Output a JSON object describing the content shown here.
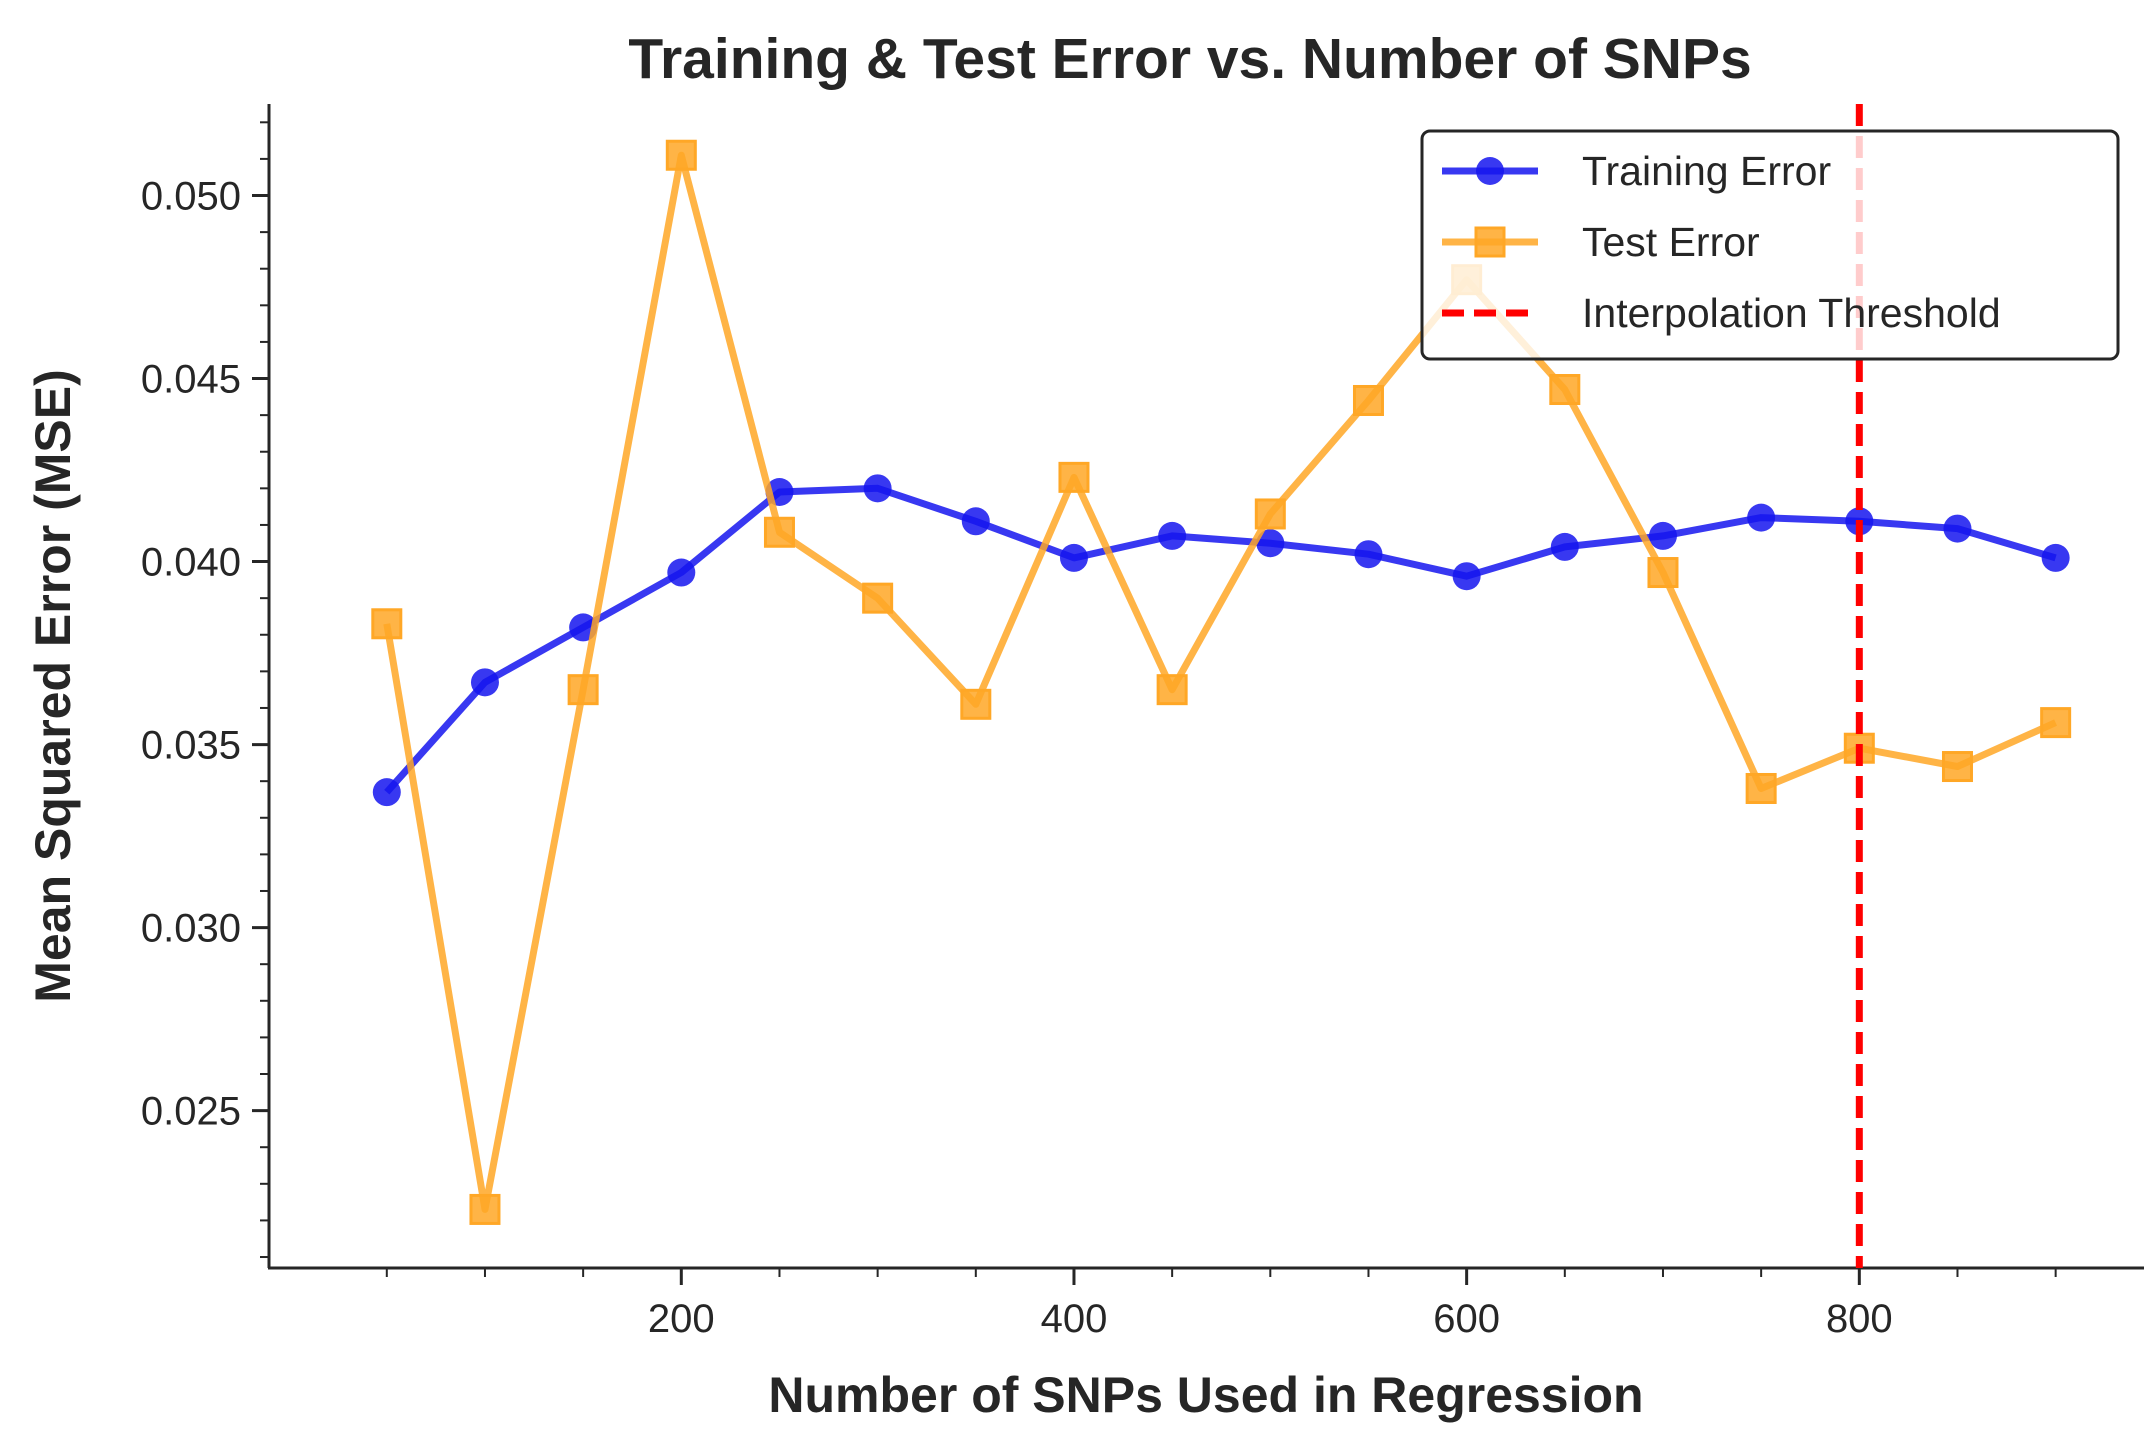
{
  "chart_data": {
    "type": "line",
    "title": "Training & Test Error vs. Number of SNPs",
    "xlabel": "Number of SNPs Used in Regression",
    "ylabel": "Mean Squared Error (MSE)",
    "xlim": [
      -10,
      945
    ],
    "ylim": [
      0.0207,
      0.0525
    ],
    "x_ticks": [
      200,
      400,
      600,
      800
    ],
    "x_ticks_minor": [
      50,
      100,
      150,
      200,
      250,
      300,
      350,
      400,
      450,
      500,
      550,
      600,
      650,
      700,
      750,
      800,
      850,
      900
    ],
    "y_ticks": [
      0.025,
      0.03,
      0.035,
      0.04,
      0.045,
      0.05
    ],
    "y_tick_labels": [
      "0.025",
      "0.030",
      "0.035",
      "0.040",
      "0.045",
      "0.050"
    ],
    "y_minor_step": 0.001,
    "grid": false,
    "legend_position": "top-right",
    "x": [
      50,
      100,
      150,
      200,
      250,
      300,
      350,
      400,
      450,
      500,
      550,
      600,
      650,
      700,
      750,
      800,
      850,
      900
    ],
    "series": [
      {
        "name": "Training Error",
        "color": "#1515ee",
        "marker": "circle",
        "values": [
          0.0337,
          0.0367,
          0.0382,
          0.0397,
          0.0419,
          0.042,
          0.0411,
          0.0401,
          0.0407,
          0.0405,
          0.0402,
          0.0396,
          0.0404,
          0.0407,
          0.0412,
          0.0411,
          0.0409,
          0.0401
        ]
      },
      {
        "name": "Test Error",
        "color": "#ffa726",
        "marker": "square",
        "values": [
          0.0383,
          0.0223,
          0.0365,
          0.0511,
          0.0408,
          0.039,
          0.0361,
          0.0423,
          0.0365,
          0.0413,
          0.0444,
          0.0477,
          0.0447,
          0.0397,
          0.0338,
          0.0349,
          0.0344,
          0.0356
        ]
      }
    ],
    "annotations": [
      {
        "type": "vline",
        "x": 800,
        "name": "Interpolation Threshold",
        "color": "#ff0000",
        "style": "dashed"
      }
    ]
  }
}
